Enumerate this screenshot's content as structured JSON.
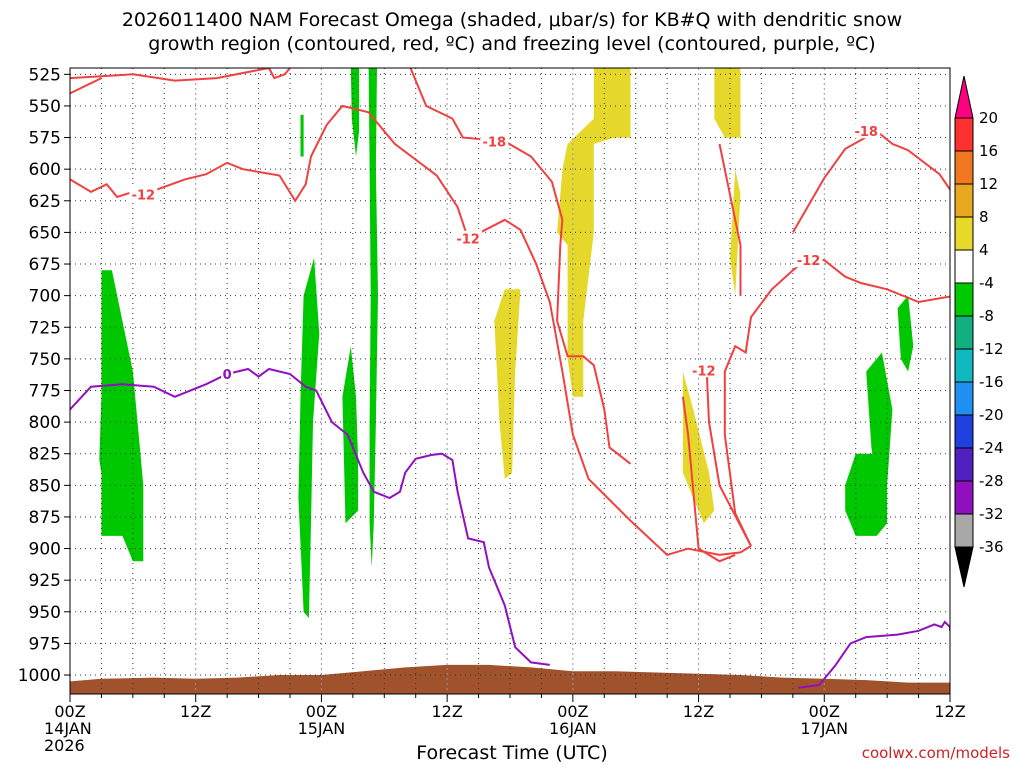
{
  "chart_data": {
    "type": "heatmap",
    "title_lines": [
      "2026011400 NAM Forecast Omega (shaded, μbar/s) for KB#Q with dendritic snow",
      "growth region (contoured, red, ºC) and freezing level (contoured, purple, ºC)"
    ],
    "xlabel": "Forecast Time (UTC)",
    "ylabel": "",
    "x_range_hours": [
      0,
      84
    ],
    "y_range_hpa": [
      520,
      1015
    ],
    "y_ticks": [
      525,
      550,
      575,
      600,
      625,
      650,
      675,
      700,
      725,
      750,
      775,
      800,
      825,
      850,
      875,
      900,
      925,
      950,
      975,
      1000
    ],
    "x_ticks": [
      {
        "h": 0,
        "lines": [
          "00Z",
          "14JAN",
          "2026"
        ]
      },
      {
        "h": 12,
        "lines": [
          "12Z"
        ]
      },
      {
        "h": 24,
        "lines": [
          "00Z",
          "15JAN"
        ]
      },
      {
        "h": 36,
        "lines": [
          "12Z"
        ]
      },
      {
        "h": 48,
        "lines": [
          "00Z",
          "16JAN"
        ]
      },
      {
        "h": 60,
        "lines": [
          "12Z"
        ]
      },
      {
        "h": 72,
        "lines": [
          "00Z",
          "17JAN"
        ]
      },
      {
        "h": 84,
        "lines": [
          "12Z"
        ]
      }
    ],
    "grid": true,
    "colorbar": {
      "placement": "right",
      "labels": [
        "20",
        "16",
        "12",
        "8",
        "4",
        "-4",
        "-8",
        "-12",
        "-16",
        "-20",
        "-24",
        "-28",
        "-32",
        "-36"
      ],
      "colors": [
        "#ff0080",
        "#ff3030",
        "#f07820",
        "#e8a820",
        "#e8d828",
        "#ffffff",
        "#00c800",
        "#10b080",
        "#10b8c0",
        "#2090f0",
        "#2040e0",
        "#5020c0",
        "#9010c0",
        "#a8a8a8",
        "#000000"
      ]
    },
    "omega_regions": [
      {
        "color": "#e6d82b",
        "points": [
          [
            47.5,
            520
          ],
          [
            50,
            520
          ],
          [
            50,
            560
          ],
          [
            47.5,
            580
          ],
          [
            47,
            600
          ],
          [
            46.5,
            650
          ],
          [
            47.5,
            660
          ],
          [
            47.5,
            750
          ],
          [
            48,
            780
          ],
          [
            49,
            780
          ],
          [
            49,
            720
          ],
          [
            50,
            650
          ],
          [
            50,
            580
          ],
          [
            52,
            575
          ],
          [
            53.5,
            575
          ],
          [
            53.5,
            520
          ],
          [
            52.5,
            520
          ]
        ]
      },
      {
        "color": "#e6d82b",
        "points": [
          [
            61.5,
            520
          ],
          [
            64,
            520
          ],
          [
            64,
            575
          ],
          [
            62.5,
            575
          ],
          [
            61.5,
            560
          ]
        ]
      },
      {
        "color": "#e6d82b",
        "points": [
          [
            63.5,
            600
          ],
          [
            64,
            620
          ],
          [
            63.5,
            700
          ],
          [
            63,
            670
          ]
        ]
      },
      {
        "color": "#e6d82b",
        "points": [
          [
            40.5,
            720
          ],
          [
            41.5,
            695
          ],
          [
            43,
            695
          ],
          [
            42.5,
            760
          ],
          [
            42.2,
            840
          ],
          [
            41.5,
            845
          ],
          [
            41,
            800
          ]
        ]
      },
      {
        "color": "#e6d82b",
        "points": [
          [
            58.5,
            760
          ],
          [
            59.5,
            790
          ],
          [
            61,
            840
          ],
          [
            61.5,
            870
          ],
          [
            60.5,
            880
          ],
          [
            59.5,
            860
          ],
          [
            58.5,
            840
          ]
        ]
      },
      {
        "color": "#00c800",
        "points": [
          [
            3,
            680
          ],
          [
            4,
            680
          ],
          [
            5,
            720
          ],
          [
            6,
            760
          ],
          [
            7,
            850
          ],
          [
            7,
            910
          ],
          [
            6,
            910
          ],
          [
            5,
            890
          ],
          [
            3,
            890
          ],
          [
            3,
            840
          ],
          [
            2.8,
            830
          ],
          [
            3,
            780
          ]
        ]
      },
      {
        "color": "#00c800",
        "points": [
          [
            22.3,
            700
          ],
          [
            23.3,
            670
          ],
          [
            23.8,
            730
          ],
          [
            23.2,
            800
          ],
          [
            23,
            880
          ],
          [
            22.8,
            955
          ],
          [
            22.3,
            950
          ],
          [
            21.8,
            860
          ],
          [
            22,
            780
          ]
        ]
      },
      {
        "color": "#00c800",
        "points": [
          [
            26,
            780
          ],
          [
            26.8,
            740
          ],
          [
            27.3,
            780
          ],
          [
            27.5,
            830
          ],
          [
            27.5,
            870
          ],
          [
            26.3,
            880
          ]
        ]
      },
      {
        "color": "#00c800",
        "points": [
          [
            26.8,
            520
          ],
          [
            27.6,
            520
          ],
          [
            27.6,
            570
          ],
          [
            27.3,
            590
          ],
          [
            26.9,
            560
          ]
        ]
      },
      {
        "color": "#00c800",
        "points": [
          [
            28.5,
            520
          ],
          [
            29.3,
            520
          ],
          [
            29.2,
            600
          ],
          [
            29.4,
            700
          ],
          [
            29.2,
            800
          ],
          [
            29.0,
            880
          ],
          [
            28.8,
            915
          ],
          [
            28.6,
            880
          ],
          [
            28.6,
            800
          ],
          [
            28.7,
            700
          ],
          [
            28.6,
            600
          ]
        ]
      },
      {
        "color": "#00c800",
        "points": [
          [
            22.0,
            557
          ],
          [
            22.3,
            557
          ],
          [
            22.3,
            590
          ],
          [
            22.0,
            590
          ]
        ]
      },
      {
        "color": "#00c800",
        "points": [
          [
            74,
            850
          ],
          [
            75,
            825
          ],
          [
            77,
            825
          ],
          [
            78,
            840
          ],
          [
            78,
            880
          ],
          [
            77,
            890
          ],
          [
            75,
            890
          ],
          [
            74,
            870
          ]
        ]
      },
      {
        "color": "#00c800",
        "points": [
          [
            76,
            760
          ],
          [
            77.5,
            745
          ],
          [
            78.5,
            790
          ],
          [
            78,
            850
          ],
          [
            77,
            850
          ],
          [
            76.5,
            820
          ]
        ]
      },
      {
        "color": "#00c800",
        "points": [
          [
            79,
            710
          ],
          [
            80,
            700
          ],
          [
            80.5,
            740
          ],
          [
            80,
            760
          ],
          [
            79.3,
            750
          ]
        ]
      }
    ],
    "dendritic_contours": [
      {
        "label": "-18",
        "label_at": [
          40.5,
          578
        ],
        "points": [
          [
            19,
            520
          ],
          [
            14,
            528
          ],
          [
            10,
            530
          ],
          [
            6,
            525
          ],
          [
            0,
            528
          ]
        ]
      },
      {
        "label": "",
        "points": [
          [
            0,
            540
          ],
          [
            3,
            528
          ]
        ]
      },
      {
        "label": "",
        "points": [
          [
            19,
            520
          ],
          [
            19.5,
            528
          ],
          [
            20.5,
            525
          ],
          [
            21,
            520
          ]
        ]
      },
      {
        "label": "",
        "points": [
          [
            32.5,
            520
          ],
          [
            34,
            550
          ],
          [
            36.5,
            560
          ],
          [
            37.5,
            575
          ],
          [
            41.5,
            578
          ],
          [
            44,
            590
          ],
          [
            46,
            610
          ],
          [
            47,
            640
          ],
          [
            46.8,
            660
          ],
          [
            46.5,
            720
          ],
          [
            47.5,
            748
          ],
          [
            49,
            748
          ],
          [
            50,
            755
          ],
          [
            51,
            790
          ],
          [
            51.5,
            820
          ],
          [
            53.5,
            833
          ]
        ]
      },
      {
        "label": "-18",
        "label_at": [
          76,
          570
        ],
        "points": [
          [
            69,
            650
          ],
          [
            72,
            607
          ],
          [
            74,
            584
          ],
          [
            77,
            570
          ],
          [
            78.5,
            580
          ],
          [
            80,
            585
          ],
          [
            83,
            604
          ],
          [
            84.5,
            622
          ]
        ]
      },
      {
        "label": "-12",
        "label_at": [
          7,
          620
        ],
        "points": [
          [
            0,
            608
          ],
          [
            2,
            618
          ],
          [
            3.5,
            612
          ],
          [
            4.5,
            622
          ],
          [
            6,
            618
          ],
          [
            7,
            620
          ],
          [
            11,
            608
          ],
          [
            13,
            604
          ],
          [
            15,
            595
          ],
          [
            16.5,
            600
          ],
          [
            20,
            605
          ],
          [
            21.5,
            625
          ],
          [
            22.5,
            612
          ],
          [
            23,
            590
          ],
          [
            24.5,
            565
          ],
          [
            26,
            550
          ],
          [
            28.5,
            555
          ],
          [
            29,
            560
          ],
          [
            31,
            580
          ],
          [
            35,
            605
          ],
          [
            37,
            630
          ],
          [
            38,
            655
          ],
          [
            41.5,
            640
          ],
          [
            43,
            648
          ],
          [
            44.5,
            675
          ],
          [
            45.8,
            705
          ],
          [
            47,
            760
          ],
          [
            48,
            810
          ],
          [
            49.5,
            845
          ],
          [
            53.5,
            878
          ],
          [
            57,
            905
          ],
          [
            59,
            900
          ],
          [
            62,
            905
          ],
          [
            64,
            903
          ],
          [
            65,
            898
          ]
        ]
      },
      {
        "label": "-12",
        "label_at": [
          60.5,
          759
        ],
        "points": [
          [
            65,
            898
          ],
          [
            62,
            850
          ],
          [
            61,
            800
          ],
          [
            60.8,
            765
          ],
          [
            61.5,
            759
          ]
        ]
      },
      {
        "label": "-12",
        "label_at": [
          70.5,
          672
        ],
        "points": [
          [
            65,
            898
          ],
          [
            63.5,
            872
          ],
          [
            62.5,
            810
          ],
          [
            62.5,
            760
          ],
          [
            63.5,
            740
          ],
          [
            64.5,
            745
          ],
          [
            65,
            717
          ],
          [
            67,
            695
          ],
          [
            69,
            680
          ],
          [
            70.5,
            670
          ],
          [
            72,
            672
          ],
          [
            74,
            685
          ],
          [
            75.5,
            690
          ],
          [
            78,
            695
          ],
          [
            81,
            705
          ],
          [
            84.5,
            700
          ]
        ]
      },
      {
        "label": "-12",
        "label_at": [
          38,
          655
        ],
        "points": [
          [
            58.5,
            780
          ],
          [
            59,
            810
          ],
          [
            60,
            900
          ],
          [
            62,
            910
          ],
          [
            63.5,
            905
          ]
        ]
      },
      {
        "label": "",
        "points": [
          [
            64,
            700
          ],
          [
            64,
            660
          ],
          [
            63.5,
            640
          ],
          [
            62,
            580
          ]
        ]
      }
    ],
    "freezing_level": {
      "label": "0",
      "label_at": [
        15,
        762
      ],
      "points": [
        [
          0,
          790
        ],
        [
          2,
          772
        ],
        [
          5,
          770
        ],
        [
          8,
          772
        ],
        [
          10,
          780
        ],
        [
          13,
          770
        ],
        [
          15,
          762
        ],
        [
          16,
          760
        ],
        [
          17,
          758
        ],
        [
          18,
          764
        ],
        [
          19,
          758
        ],
        [
          21,
          762
        ],
        [
          22.5,
          772
        ],
        [
          23.5,
          775
        ],
        [
          25,
          800
        ],
        [
          26.5,
          810
        ],
        [
          28,
          840
        ],
        [
          29,
          855
        ],
        [
          30.5,
          860
        ],
        [
          31.5,
          855
        ],
        [
          32,
          840
        ],
        [
          33,
          829
        ],
        [
          34.5,
          826
        ],
        [
          35.5,
          825
        ],
        [
          36.5,
          830
        ],
        [
          37,
          855
        ],
        [
          38,
          892
        ],
        [
          39.5,
          895
        ],
        [
          40,
          915
        ],
        [
          41.5,
          945
        ],
        [
          42.5,
          978
        ],
        [
          44,
          990
        ],
        [
          45.8,
          992
        ]
      ]
    },
    "freezing_level_right": {
      "points": [
        [
          69.5,
          1010
        ],
        [
          71.5,
          1008
        ],
        [
          73,
          993
        ],
        [
          74.5,
          975
        ],
        [
          76,
          970
        ],
        [
          79,
          968
        ],
        [
          81,
          965
        ],
        [
          82.5,
          960
        ],
        [
          83.2,
          962
        ],
        [
          83.5,
          958
        ],
        [
          84,
          962
        ],
        [
          84,
          965
        ]
      ]
    },
    "terrain": {
      "color": "#a0522d",
      "points": [
        [
          0,
          1005
        ],
        [
          3,
          1003
        ],
        [
          8,
          1002
        ],
        [
          12,
          1003
        ],
        [
          16,
          1002
        ],
        [
          20,
          1000
        ],
        [
          24,
          1000
        ],
        [
          28,
          997
        ],
        [
          32,
          994
        ],
        [
          36,
          992
        ],
        [
          40,
          992
        ],
        [
          44,
          994
        ],
        [
          48,
          997
        ],
        [
          52,
          997
        ],
        [
          56,
          998
        ],
        [
          60,
          999
        ],
        [
          64,
          1000
        ],
        [
          68,
          1002
        ],
        [
          72,
          1003
        ],
        [
          76,
          1004
        ],
        [
          80,
          1006
        ],
        [
          84,
          1006
        ]
      ]
    }
  },
  "watermark": "coolwx.com/models"
}
